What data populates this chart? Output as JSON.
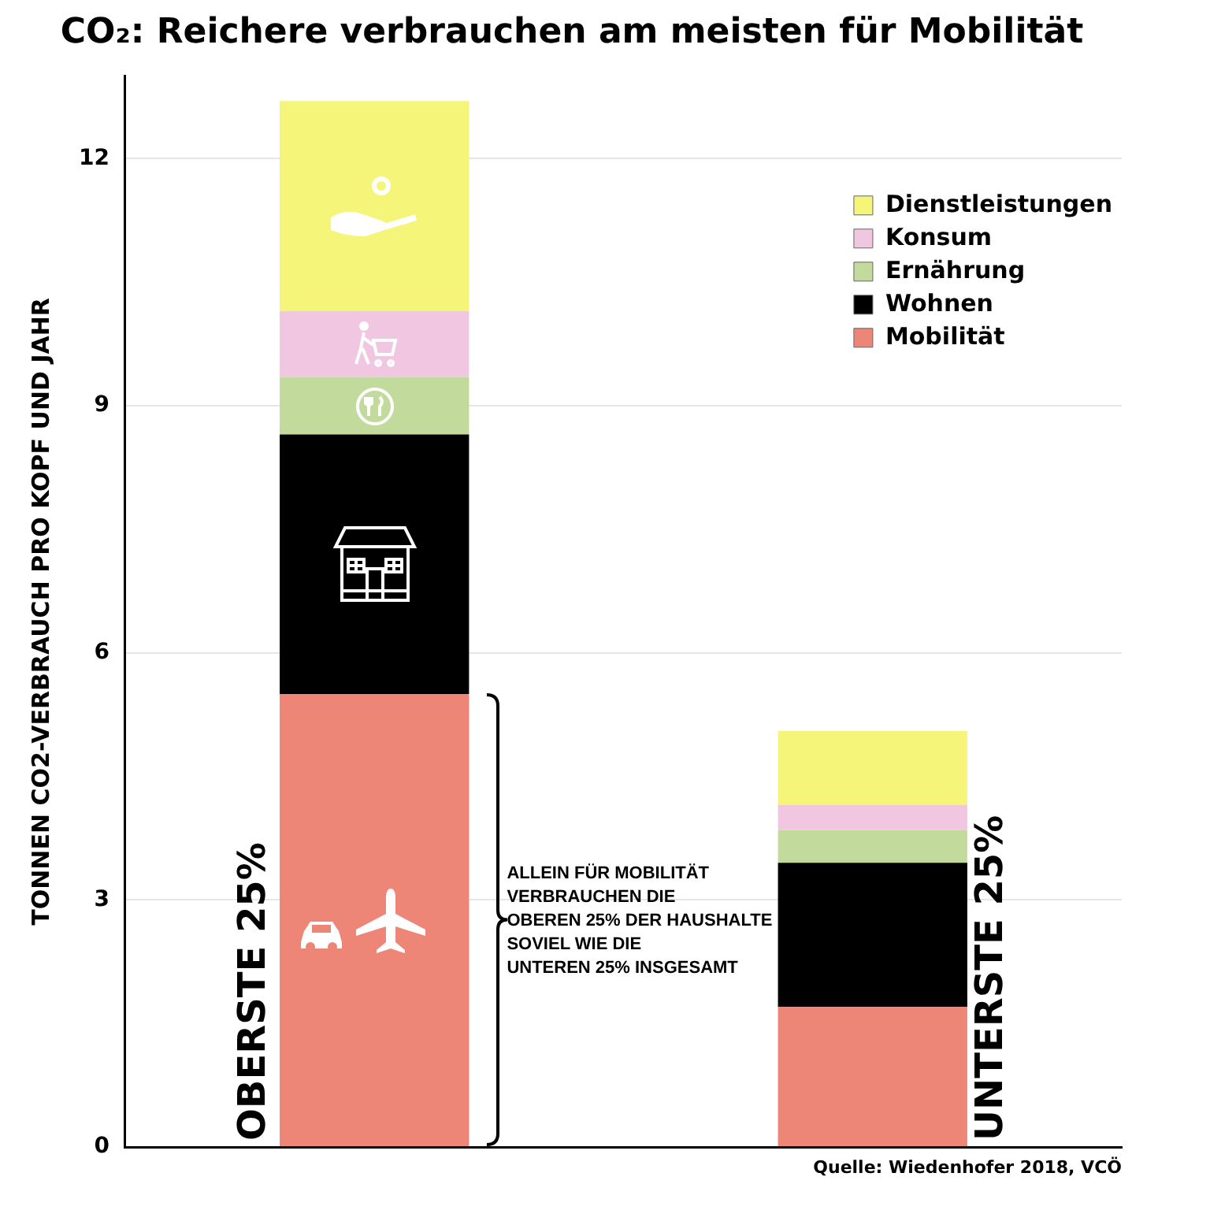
{
  "chart_data": {
    "type": "bar",
    "stacked": true,
    "title": "CO₂: Reichere verbrauchen am meisten für Mobilität",
    "ylabel": "TONNEN CO2-VERBRAUCH PRO KOPF UND JAHR",
    "categories": [
      "OBERSTE 25%",
      "UNTERSTE 25%"
    ],
    "series": [
      {
        "name": "Mobilität",
        "color": "#ee8677",
        "values": [
          5.5,
          1.7
        ]
      },
      {
        "name": "Wohnen",
        "color": "#000000",
        "values": [
          3.15,
          1.75
        ]
      },
      {
        "name": "Ernährung",
        "color": "#c2db9c",
        "values": [
          0.7,
          0.4
        ]
      },
      {
        "name": "Konsum",
        "color": "#f0c6e0",
        "values": [
          0.8,
          0.3
        ]
      },
      {
        "name": "Dienstleistungen",
        "color": "#f5f57a",
        "values": [
          2.55,
          0.9
        ]
      }
    ],
    "ylim": [
      0,
      13
    ],
    "yticks": [
      0,
      3,
      6,
      9,
      12
    ],
    "grid": "y",
    "legend": "top right",
    "annotations": [
      "ALLEIN FÜR MOBILITÄT\nVERBRAUCHEN DIE\nOBEREN 25% DER HAUSHALTE\nSOVIEL WIE DIE\nUNTEREN 25% INSGESAMT",
      "Quelle: Wiedenhofer 2018, VCÖ"
    ]
  }
}
